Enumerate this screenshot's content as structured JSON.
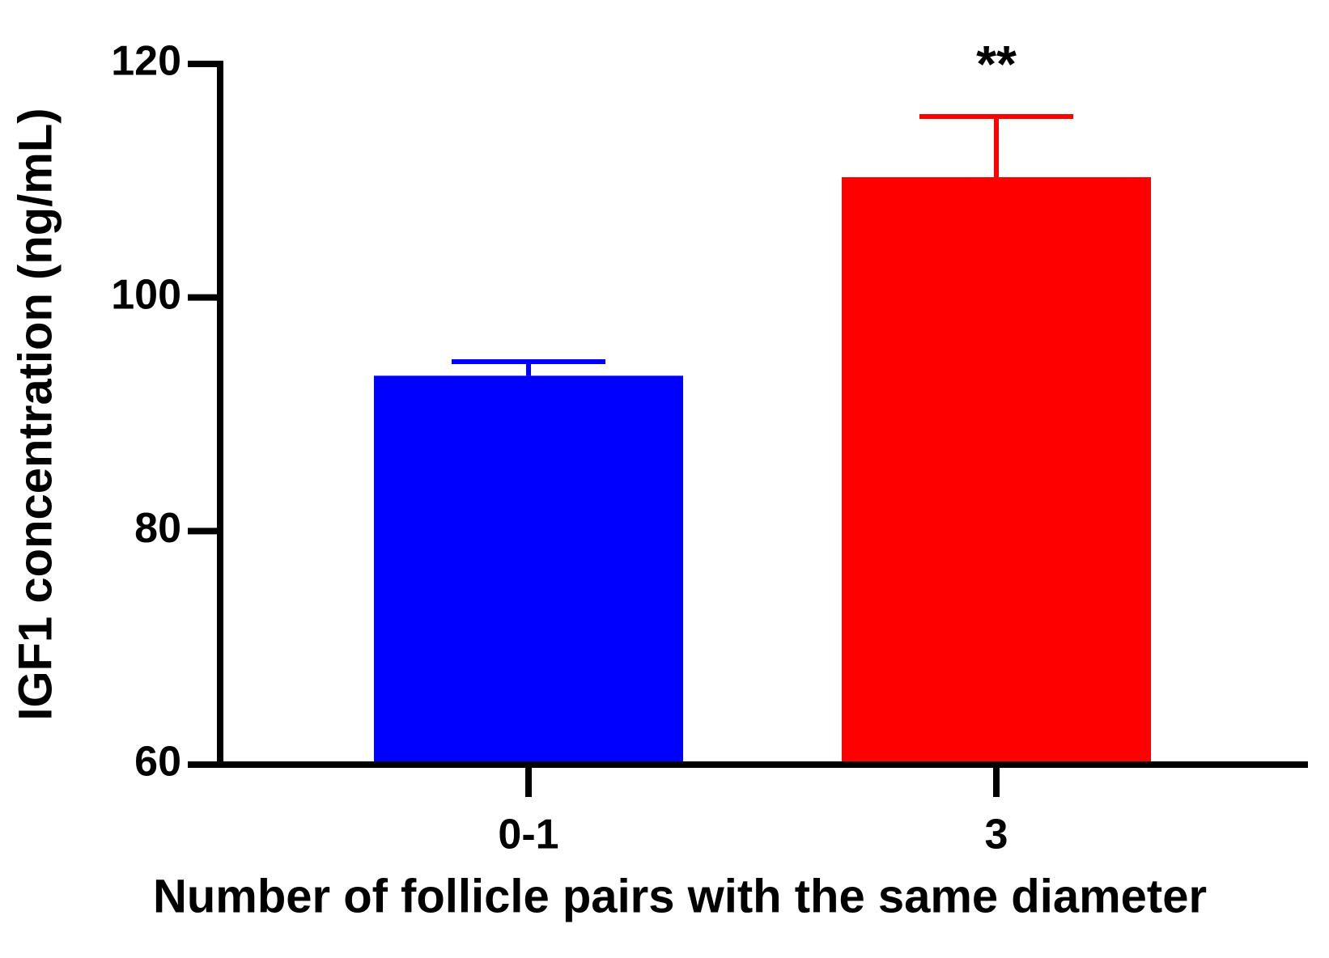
{
  "chart_data": {
    "type": "bar",
    "xlabel": "Number of follicle pairs with the same diameter",
    "ylabel": "IGF1 concentration (ng/mL)",
    "categories": [
      "0-1",
      "3"
    ],
    "values": [
      93.3,
      110.3
    ],
    "errors": [
      1.2,
      5.2
    ],
    "colors": [
      "#0000ff",
      "#ff0000"
    ],
    "ylim": [
      60,
      120
    ],
    "yticks": [
      60,
      80,
      100,
      120
    ],
    "annotations": [
      {
        "text": "**",
        "category": "3"
      }
    ]
  }
}
